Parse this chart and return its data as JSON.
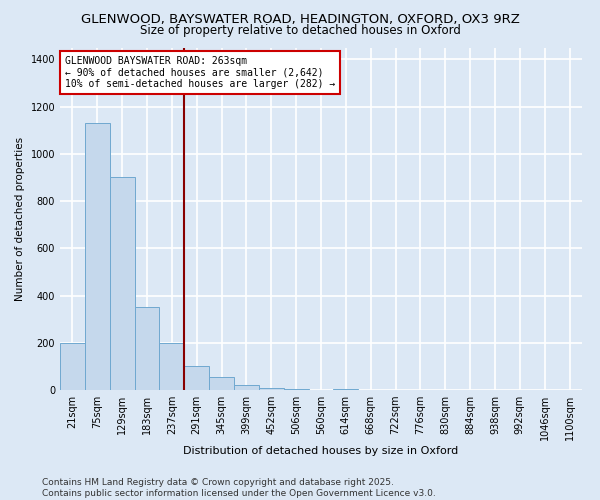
{
  "title1": "GLENWOOD, BAYSWATER ROAD, HEADINGTON, OXFORD, OX3 9RZ",
  "title2": "Size of property relative to detached houses in Oxford",
  "xlabel": "Distribution of detached houses by size in Oxford",
  "ylabel": "Number of detached properties",
  "categories": [
    "21sqm",
    "75sqm",
    "129sqm",
    "183sqm",
    "237sqm",
    "291sqm",
    "345sqm",
    "399sqm",
    "452sqm",
    "506sqm",
    "560sqm",
    "614sqm",
    "668sqm",
    "722sqm",
    "776sqm",
    "830sqm",
    "884sqm",
    "938sqm",
    "992sqm",
    "1046sqm",
    "1100sqm"
  ],
  "values": [
    200,
    1130,
    900,
    350,
    200,
    100,
    55,
    20,
    10,
    5,
    0,
    5,
    0,
    0,
    0,
    0,
    0,
    0,
    0,
    0,
    0
  ],
  "bar_color": "#c5d8ec",
  "bar_edge_color": "#6fa8d0",
  "vline_x": 5,
  "vline_color": "#880000",
  "annotation_text": "GLENWOOD BAYSWATER ROAD: 263sqm\n← 90% of detached houses are smaller (2,642)\n10% of semi-detached houses are larger (282) →",
  "annotation_box_color": "#ffffff",
  "annotation_box_edge_color": "#cc0000",
  "ylim": [
    0,
    1450
  ],
  "yticks": [
    0,
    200,
    400,
    600,
    800,
    1000,
    1200,
    1400
  ],
  "footer": "Contains HM Land Registry data © Crown copyright and database right 2025.\nContains public sector information licensed under the Open Government Licence v3.0.",
  "bg_color": "#dce8f5",
  "grid_color": "#ffffff",
  "title1_fontsize": 9.5,
  "title2_fontsize": 8.5,
  "xlabel_fontsize": 8,
  "ylabel_fontsize": 7.5,
  "tick_fontsize": 7,
  "annotation_fontsize": 7,
  "footer_fontsize": 6.5
}
